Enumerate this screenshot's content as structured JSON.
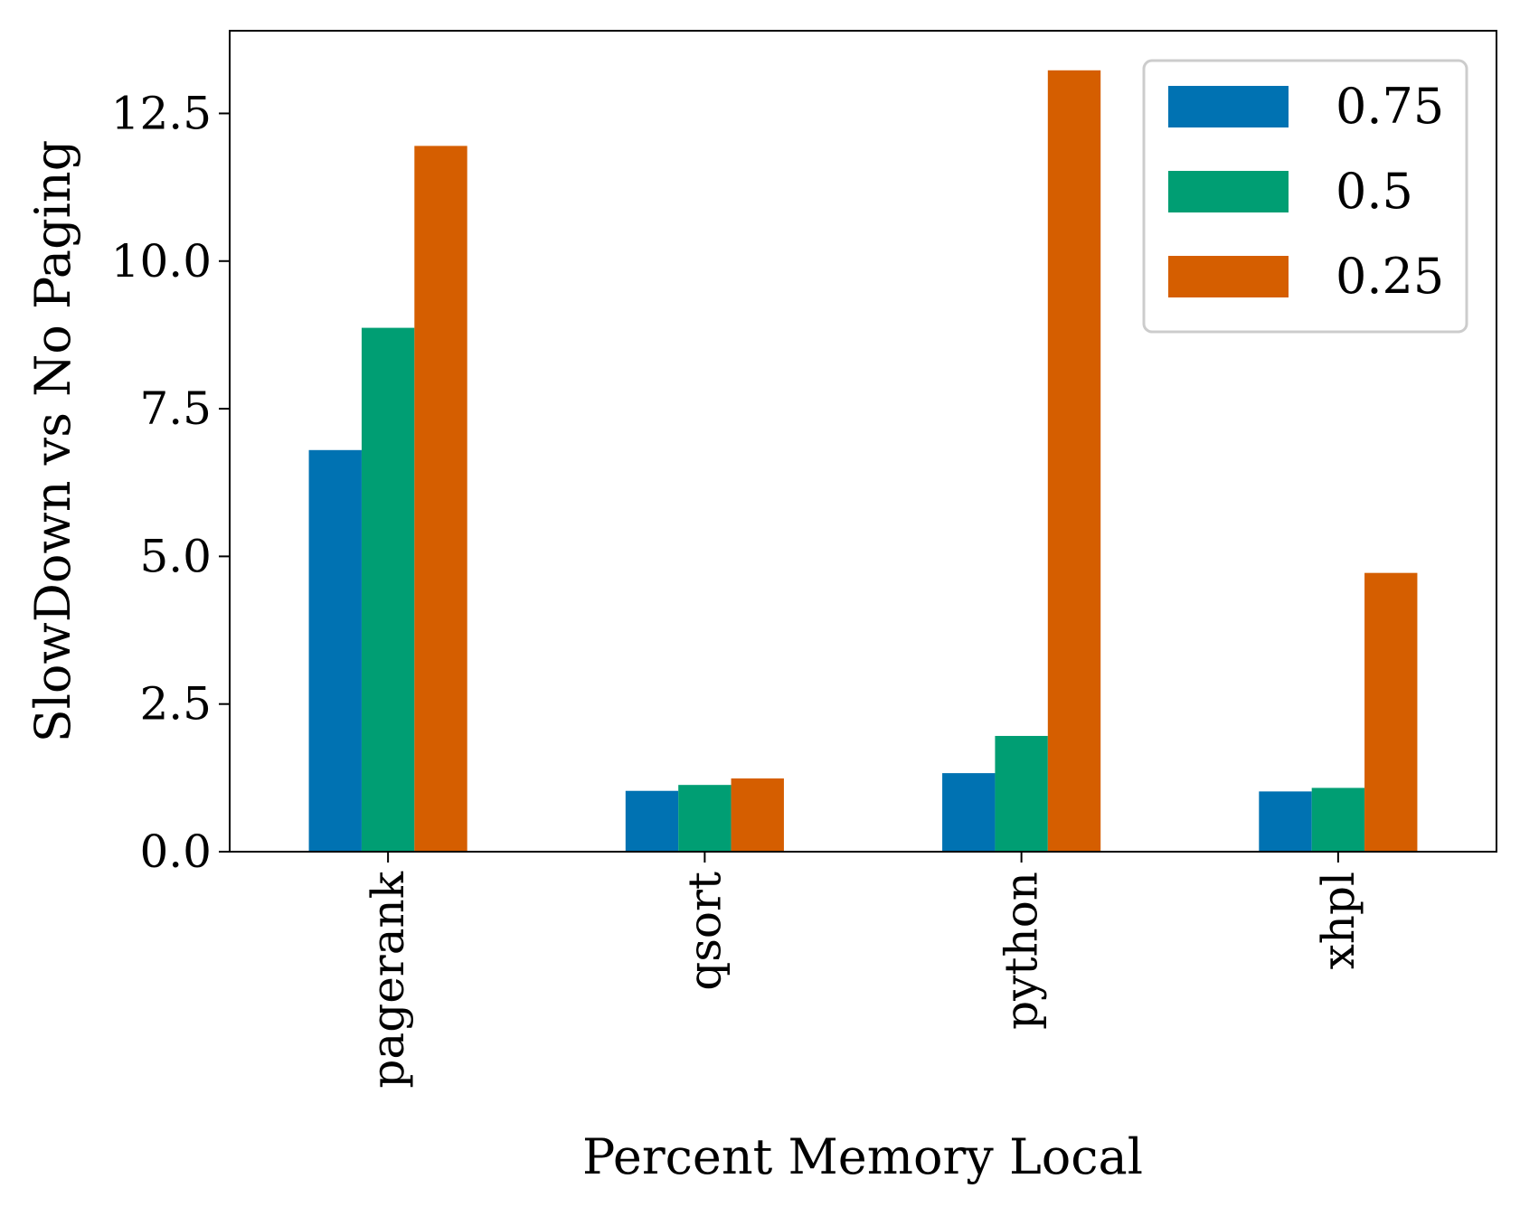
{
  "chart_data": {
    "type": "bar",
    "xlabel": "Percent Memory Local",
    "ylabel": "SlowDown vs No Paging",
    "categories": [
      "pagerank",
      "qsort",
      "python",
      "xhpl"
    ],
    "series": [
      {
        "name": "0.75",
        "color": "#0072b2",
        "values": [
          6.8,
          1.03,
          1.33,
          1.02
        ]
      },
      {
        "name": "0.5",
        "color": "#009e73",
        "values": [
          8.87,
          1.13,
          1.96,
          1.08
        ]
      },
      {
        "name": "0.25",
        "color": "#d55e00",
        "values": [
          11.95,
          1.24,
          13.23,
          4.72
        ]
      }
    ],
    "ylim": [
      0,
      13.9
    ],
    "yticks": [
      0.0,
      2.5,
      5.0,
      7.5,
      10.0,
      12.5
    ],
    "ytick_labels": [
      "0.0",
      "2.5",
      "5.0",
      "7.5",
      "10.0",
      "12.5"
    ],
    "grid": false,
    "legend_position": "top-right"
  }
}
